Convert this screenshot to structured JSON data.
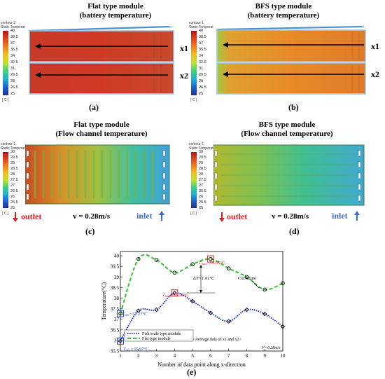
{
  "panels": {
    "a": {
      "title_line1": "Flat type module",
      "title_line2": "(battery temperature)",
      "label": "(a)",
      "colorbar_header1": "contour-2",
      "colorbar_header2": "Static Temperat",
      "colorbar_unit": "[ C ]",
      "ticks": [
        "40",
        "38.5",
        "37",
        "35.5",
        "34",
        "32.5",
        "31",
        "29.5",
        "28",
        "26.5",
        "25"
      ],
      "lines": [
        "x1",
        "x2"
      ]
    },
    "b": {
      "title_line1": "BFS type module",
      "title_line2": "(battery temperature)",
      "label": "(b)",
      "colorbar_header1": "contour-1",
      "colorbar_header2": "Static Temperat",
      "colorbar_unit": "[ C ]",
      "ticks": [
        "40",
        "38.5",
        "37",
        "35.5",
        "34",
        "32.5",
        "31",
        "29.5",
        "28",
        "26.5",
        "25"
      ],
      "lines": [
        "x1",
        "x2"
      ]
    },
    "c": {
      "title_line1": "Flat type module",
      "title_line2": "(Flow channel temperature)",
      "label": "(c)",
      "colorbar_header1": "contour-1",
      "colorbar_header2": "Static Temperat",
      "colorbar_unit": "[ C ]",
      "ticks": [
        "30",
        "29.5",
        "29",
        "28.5",
        "28",
        "27.5",
        "27",
        "26.5",
        "26",
        "25.5",
        "25"
      ],
      "outlet": "outlet",
      "velocity": "v = 0.28m/s",
      "inlet": "inlet"
    },
    "d": {
      "title_line1": "BFS type module",
      "title_line2": "(Flow channel temperature)",
      "label": "(d)",
      "colorbar_header1": "contour-1",
      "colorbar_header2": "Static Temperat",
      "colorbar_unit": "[ C ]",
      "ticks": [
        "30",
        "29.5",
        "29",
        "28.5",
        "28",
        "27.5",
        "27",
        "26.5",
        "26",
        "25.5",
        "25"
      ],
      "outlet": "outlet",
      "velocity": "v = 0.28m/s",
      "inlet": "inlet"
    },
    "e": {
      "label": "(e)",
      "annotations": {
        "tmax_flat": "T",
        "tmax_flat_sub": "max",
        "tmax_flat_val": "=39.85°C",
        "tmax_fish": "T",
        "tmax_fish_sub": "max",
        "tmax_fish_val": "=38.24°C",
        "tmin_flat": "T",
        "tmin_flat_sub": "min",
        "tmin_flat_val": "=37.27°C",
        "tmin_fish": "T",
        "tmin_fish_sub": "min",
        "tmin_fish_val": "=35.97°C",
        "delta": "∆T=1.61°C",
        "curvature": "Curvature",
        "average_note": "<Average data of x1 and x2>",
        "velocity": "V=0.28m/s"
      }
    }
  },
  "colors": {
    "outlet_arrow": "#e02020",
    "inlet_arrow": "#3a6fd0",
    "fish_series": "#1f2fd0",
    "flat_series": "#30c030",
    "highlight_red": "#e02020",
    "highlight_blue": "#1f4fd0"
  },
  "chart_data": {
    "type": "line",
    "title": "",
    "xlabel": "Number of data point along x-direction",
    "ylabel": "Temperature(°C)",
    "xlim": [
      1,
      10
    ],
    "ylim": [
      35.5,
      40.2
    ],
    "xticks": [
      "1",
      "2",
      "3",
      "4",
      "5",
      "6",
      "7",
      "8",
      "9",
      "10"
    ],
    "yticks": [
      "35.5",
      "36",
      "36.5",
      "37",
      "37.5",
      "38",
      "38.5",
      "39",
      "39.5",
      "40"
    ],
    "grid": false,
    "legend_position": "lower-left",
    "x": [
      1,
      2,
      3,
      4,
      5,
      6,
      7,
      8,
      9,
      10
    ],
    "series": [
      {
        "name": "Fish scale type module",
        "style": "dotted",
        "values": [
          35.97,
          37.4,
          37.45,
          38.24,
          37.85,
          37.3,
          36.9,
          37.45,
          37.25,
          36.65
        ]
      },
      {
        "name": "Flat type module",
        "style": "dashed",
        "values": [
          37.27,
          39.85,
          39.8,
          39.2,
          39.6,
          39.85,
          39.4,
          39.0,
          38.4,
          38.7
        ]
      }
    ]
  }
}
